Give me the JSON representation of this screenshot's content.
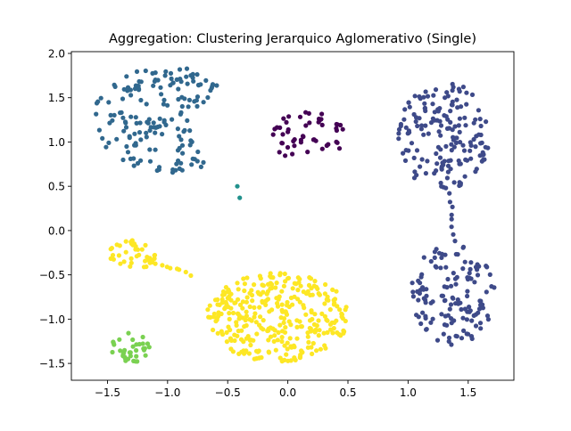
{
  "chart_data": {
    "type": "scatter",
    "title": "Aggregation: Clustering Jerarquico Aglomerativo (Single)",
    "xlabel": "",
    "ylabel": "",
    "xlim": [
      -1.8,
      1.88
    ],
    "ylim": [
      -1.69,
      2.02
    ],
    "xticks": [
      -1.5,
      -1.0,
      -0.5,
      0.0,
      0.5,
      1.0,
      1.5
    ],
    "yticks": [
      -1.5,
      -1.0,
      -0.5,
      0.0,
      0.5,
      1.0,
      1.5,
      2.0
    ],
    "xtick_labels": [
      "−1.5",
      "−1.0",
      "−0.5",
      "0.0",
      "0.5",
      "1.0",
      "1.5"
    ],
    "ytick_labels": [
      "−1.5",
      "−1.0",
      "−0.5",
      "0.0",
      "0.5",
      "1.0",
      "1.5",
      "2.0"
    ],
    "grid": false,
    "legend": "none",
    "clusters": [
      {
        "color": "#31688e",
        "shape": "crescent",
        "center": [
          -1.0,
          1.25
        ],
        "rx": 0.62,
        "ry": 0.6,
        "cut_center": [
          -0.35,
          1.15
        ],
        "cut_r": 0.46,
        "count": 170
      },
      {
        "color": "#440154",
        "shape": "ellipse",
        "center": [
          0.15,
          1.07
        ],
        "rx": 0.33,
        "ry": 0.27,
        "count": 50
      },
      {
        "color": "#3e4a89",
        "shape": "ellipse",
        "center": [
          1.3,
          1.07
        ],
        "rx": 0.38,
        "ry": 0.63,
        "count": 170
      },
      {
        "color": "#3e4a89",
        "shape": "ellipse",
        "center": [
          1.37,
          -0.72
        ],
        "rx": 0.35,
        "ry": 0.57,
        "count": 135
      },
      {
        "color": "#3e4a89",
        "shape": "bridge",
        "from": [
          1.35,
          0.45
        ],
        "to": [
          1.38,
          -0.15
        ],
        "count": 8
      },
      {
        "color": "#fde725",
        "shape": "ellipse",
        "center": [
          -0.08,
          -0.98
        ],
        "rx": 0.6,
        "ry": 0.5,
        "count": 330
      },
      {
        "color": "#fde725",
        "shape": "ellipse",
        "center": [
          -1.3,
          -0.28
        ],
        "rx": 0.2,
        "ry": 0.17,
        "count": 40
      },
      {
        "color": "#fde725",
        "shape": "bridge",
        "from": [
          -1.12,
          -0.35
        ],
        "to": [
          -0.8,
          -0.5
        ],
        "count": 8
      },
      {
        "color": "#7ad151",
        "shape": "ellipse",
        "center": [
          -1.31,
          -1.33
        ],
        "rx": 0.17,
        "ry": 0.18,
        "count": 35
      },
      {
        "color": "#21918c",
        "shape": "points",
        "points": [
          [
            -0.42,
            0.5
          ],
          [
            -0.4,
            0.37
          ]
        ]
      }
    ]
  }
}
